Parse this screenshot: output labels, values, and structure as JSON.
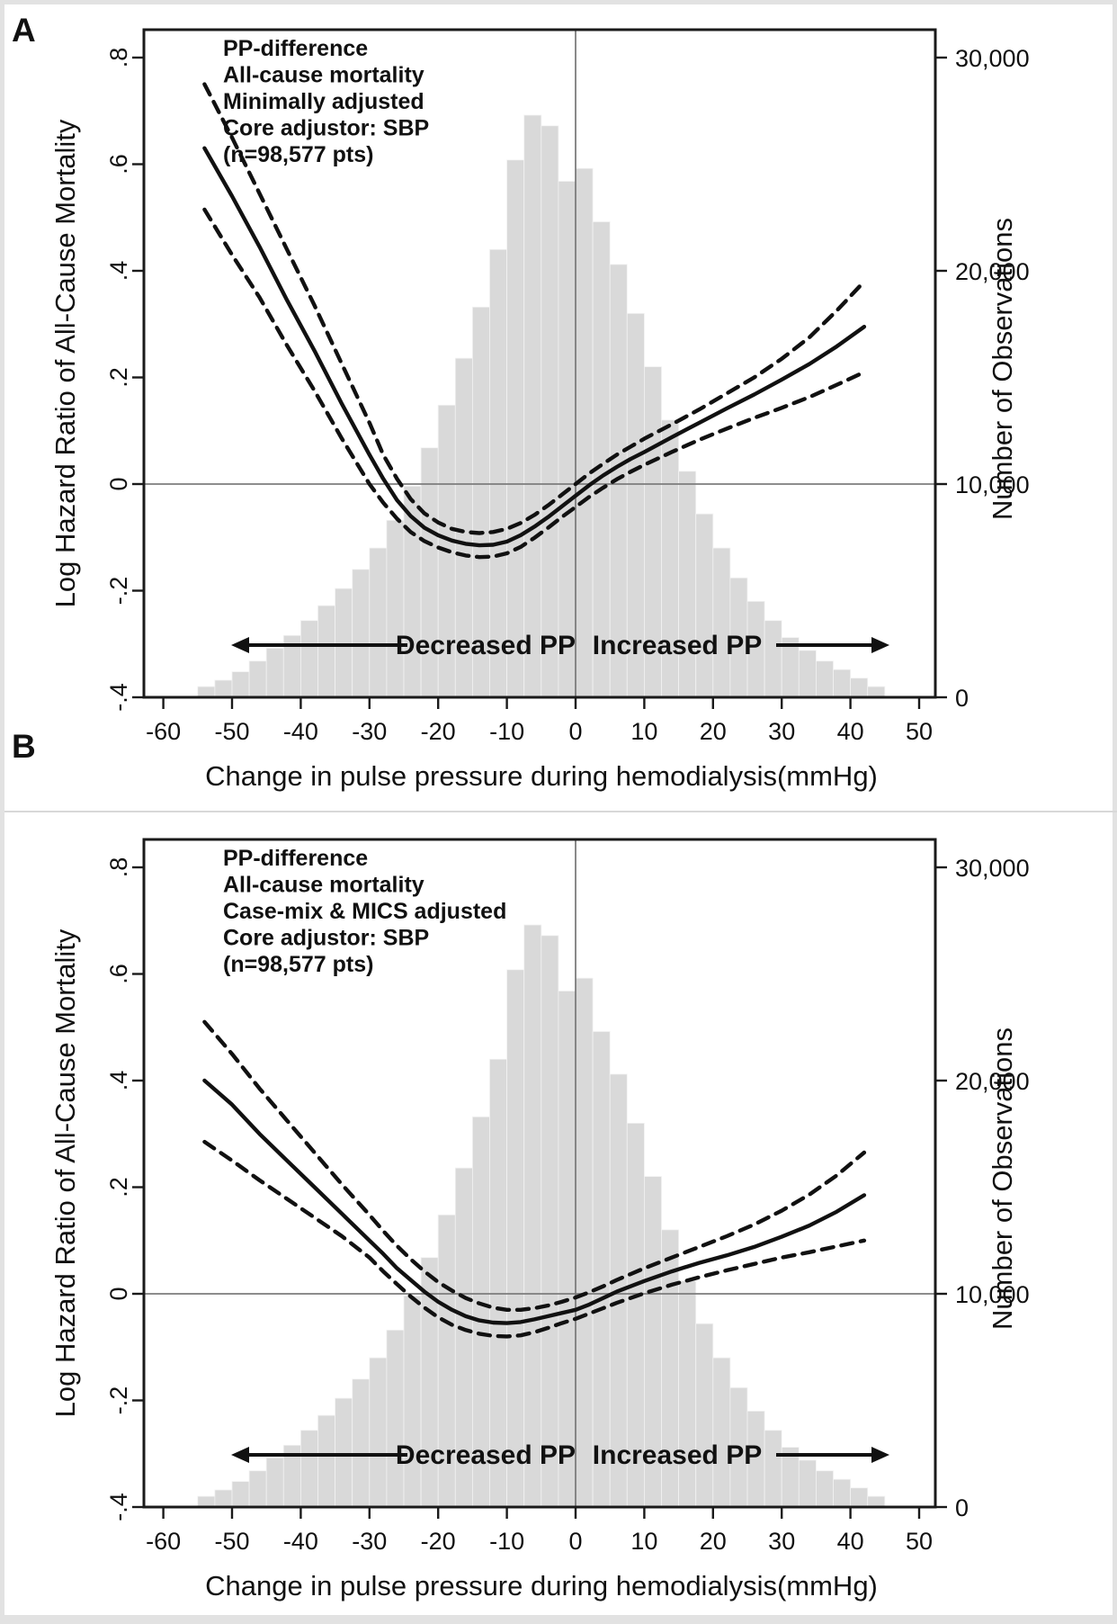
{
  "colors": {
    "background": "#e2e2e2",
    "figure_background": "#ffffff",
    "frame": "#1a1a1a",
    "curve": "#111111",
    "histogram_fill": "#d9d9d9",
    "histogram_edge": "#f2f2f2",
    "reference_line": "#7d7d7d",
    "text": "#111111",
    "divider": "#d8d8d8"
  },
  "panel_letters": {
    "a": "A",
    "b": "B"
  },
  "chart_data": [
    {
      "type": "line",
      "panel": "A",
      "annotation_lines": [
        "PP-difference",
        "All-cause mortality",
        "Minimally adjusted",
        "Core adjustor: SBP",
        "(n=98,577 pts)"
      ],
      "xlabel": "Change in pulse pressure during hemodialysis(mmHg)",
      "ylabel_left": "Log Hazard Ratio of All-Cause Mortality",
      "ylabel_right": "Number of Observations",
      "xlim": [
        -63,
        52.5
      ],
      "ylim_left": [
        -0.4,
        0.85
      ],
      "ylim_right": [
        0,
        31250
      ],
      "grid": false,
      "reference_lines": {
        "horizontal_at_left_y": 0,
        "vertical_at_x": 0
      },
      "axes_note": "Axes aligned: left 0 = right 10,000; left -.4 = right 0; 0.2 log-HR = 5,000 observations",
      "x_ticks": [
        -60,
        -50,
        -40,
        -30,
        -20,
        -10,
        0,
        10,
        20,
        30,
        40,
        50
      ],
      "x_tick_labels": [
        "-60",
        "-50",
        "-40",
        "-30",
        "-20",
        "-10",
        "0",
        "10",
        "20",
        "30",
        "40",
        "50"
      ],
      "y_ticks_left": [
        0.8,
        0.6,
        0.4,
        0.2,
        0,
        -0.2,
        -0.4
      ],
      "y_tick_labels_left": [
        ".8",
        ".6",
        ".4",
        ".2",
        "0",
        "-.2",
        "-.4"
      ],
      "y_ticks_right": [
        30000,
        20000,
        10000,
        0
      ],
      "y_tick_labels_right": [
        "30,000",
        "20,000",
        "10,000",
        "0"
      ],
      "region_labels": {
        "left": "Decreased PP",
        "right": "Increased PP"
      },
      "x": [
        -54,
        -50,
        -46,
        -42,
        -38,
        -34,
        -30,
        -28,
        -26,
        -24,
        -22,
        -20,
        -18,
        -16,
        -14,
        -12,
        -10,
        -8,
        -6,
        -4,
        -2,
        0,
        2,
        4,
        6,
        8,
        10,
        14,
        18,
        22,
        26,
        30,
        34,
        38,
        42
      ],
      "series": [
        {
          "name": "log_hazard_ratio",
          "style": "solid",
          "values": [
            0.63,
            0.54,
            0.445,
            0.345,
            0.25,
            0.15,
            0.055,
            0.01,
            -0.03,
            -0.06,
            -0.082,
            -0.096,
            -0.106,
            -0.112,
            -0.115,
            -0.114,
            -0.108,
            -0.096,
            -0.08,
            -0.062,
            -0.042,
            -0.022,
            -0.002,
            0.016,
            0.032,
            0.047,
            0.06,
            0.088,
            0.115,
            0.142,
            0.168,
            0.196,
            0.225,
            0.258,
            0.295
          ]
        },
        {
          "name": "upper_95ci",
          "style": "dashed",
          "values": [
            0.75,
            0.65,
            0.545,
            0.44,
            0.335,
            0.225,
            0.115,
            0.055,
            0.01,
            -0.028,
            -0.055,
            -0.072,
            -0.084,
            -0.09,
            -0.092,
            -0.09,
            -0.084,
            -0.073,
            -0.058,
            -0.04,
            -0.02,
            0.0,
            0.02,
            0.038,
            0.055,
            0.07,
            0.085,
            0.112,
            0.14,
            0.17,
            0.2,
            0.235,
            0.275,
            0.325,
            0.38
          ]
        },
        {
          "name": "lower_95ci",
          "style": "dashed",
          "values": [
            0.515,
            0.43,
            0.35,
            0.26,
            0.175,
            0.085,
            0.0,
            -0.035,
            -0.065,
            -0.09,
            -0.107,
            -0.119,
            -0.128,
            -0.134,
            -0.137,
            -0.136,
            -0.13,
            -0.118,
            -0.101,
            -0.082,
            -0.062,
            -0.043,
            -0.024,
            -0.007,
            0.009,
            0.023,
            0.036,
            0.06,
            0.083,
            0.104,
            0.124,
            0.143,
            0.163,
            0.186,
            0.21
          ]
        }
      ],
      "histogram": {
        "units": "observations (right axis)",
        "bin_width": 2.5,
        "bin_start": -55,
        "counts": [
          500,
          800,
          1200,
          1700,
          2300,
          2900,
          3600,
          4300,
          5100,
          6000,
          7000,
          8300,
          9900,
          11700,
          13700,
          15900,
          18300,
          21000,
          25200,
          27300,
          26800,
          24200,
          24800,
          22300,
          20300,
          18000,
          15500,
          13000,
          10600,
          8600,
          7000,
          5600,
          4500,
          3600,
          2800,
          2200,
          1700,
          1300,
          900,
          500
        ]
      }
    },
    {
      "type": "line",
      "panel": "B",
      "annotation_lines": [
        "PP-difference",
        "All-cause mortality",
        "Case-mix & MICS adjusted",
        "Core adjustor: SBP",
        "(n=98,577 pts)"
      ],
      "xlabel": "Change in pulse pressure during hemodialysis(mmHg)",
      "ylabel_left": "Log Hazard Ratio of All-Cause Mortality",
      "ylabel_right": "Number of Observations",
      "xlim": [
        -63,
        52.5
      ],
      "ylim_left": [
        -0.4,
        0.85
      ],
      "ylim_right": [
        0,
        31250
      ],
      "grid": false,
      "reference_lines": {
        "horizontal_at_left_y": 0,
        "vertical_at_x": 0
      },
      "axes_note": "Axes aligned: left 0 = right 10,000; left -.4 = right 0; 0.2 log-HR = 5,000 observations",
      "x_ticks": [
        -60,
        -50,
        -40,
        -30,
        -20,
        -10,
        0,
        10,
        20,
        30,
        40,
        50
      ],
      "x_tick_labels": [
        "-60",
        "-50",
        "-40",
        "-30",
        "-20",
        "-10",
        "0",
        "10",
        "20",
        "30",
        "40",
        "50"
      ],
      "y_ticks_left": [
        0.8,
        0.6,
        0.4,
        0.2,
        0,
        -0.2,
        -0.4
      ],
      "y_tick_labels_left": [
        ".8",
        ".6",
        ".4",
        ".2",
        "0",
        "-.2",
        "-.4"
      ],
      "y_ticks_right": [
        30000,
        20000,
        10000,
        0
      ],
      "y_tick_labels_right": [
        "30,000",
        "20,000",
        "10,000",
        "0"
      ],
      "region_labels": {
        "left": "Decreased PP",
        "right": "Increased PP"
      },
      "x": [
        -54,
        -50,
        -46,
        -42,
        -38,
        -34,
        -30,
        -28,
        -26,
        -24,
        -22,
        -20,
        -18,
        -16,
        -14,
        -12,
        -10,
        -8,
        -6,
        -4,
        -2,
        0,
        2,
        4,
        6,
        8,
        10,
        14,
        18,
        22,
        26,
        30,
        34,
        38,
        42
      ],
      "series": [
        {
          "name": "log_hazard_ratio",
          "style": "solid",
          "values": [
            0.4,
            0.355,
            0.3,
            0.25,
            0.2,
            0.15,
            0.1,
            0.075,
            0.048,
            0.026,
            0.004,
            -0.015,
            -0.03,
            -0.042,
            -0.05,
            -0.054,
            -0.055,
            -0.053,
            -0.048,
            -0.042,
            -0.036,
            -0.03,
            -0.02,
            -0.008,
            0.004,
            0.014,
            0.024,
            0.042,
            0.058,
            0.072,
            0.088,
            0.107,
            0.128,
            0.154,
            0.185
          ]
        },
        {
          "name": "upper_95ci",
          "style": "dashed",
          "values": [
            0.51,
            0.45,
            0.385,
            0.325,
            0.265,
            0.205,
            0.148,
            0.118,
            0.09,
            0.065,
            0.042,
            0.022,
            0.006,
            -0.008,
            -0.018,
            -0.026,
            -0.03,
            -0.03,
            -0.027,
            -0.022,
            -0.015,
            -0.007,
            0.003,
            0.014,
            0.026,
            0.037,
            0.048,
            0.068,
            0.088,
            0.108,
            0.13,
            0.156,
            0.186,
            0.222,
            0.265
          ]
        },
        {
          "name": "lower_95ci",
          "style": "dashed",
          "values": [
            0.285,
            0.25,
            0.213,
            0.178,
            0.143,
            0.108,
            0.068,
            0.042,
            0.018,
            -0.005,
            -0.026,
            -0.044,
            -0.058,
            -0.068,
            -0.075,
            -0.079,
            -0.08,
            -0.078,
            -0.072,
            -0.064,
            -0.055,
            -0.047,
            -0.037,
            -0.027,
            -0.017,
            -0.008,
            0.001,
            0.017,
            0.031,
            0.044,
            0.056,
            0.068,
            0.078,
            0.089,
            0.1
          ]
        }
      ],
      "histogram": {
        "units": "observations (right axis)",
        "bin_width": 2.5,
        "bin_start": -55,
        "counts": [
          500,
          800,
          1200,
          1700,
          2300,
          2900,
          3600,
          4300,
          5100,
          6000,
          7000,
          8300,
          9900,
          11700,
          13700,
          15900,
          18300,
          21000,
          25200,
          27300,
          26800,
          24200,
          24800,
          22300,
          20300,
          18000,
          15500,
          13000,
          10600,
          8600,
          7000,
          5600,
          4500,
          3600,
          2800,
          2200,
          1700,
          1300,
          900,
          500
        ]
      }
    }
  ]
}
